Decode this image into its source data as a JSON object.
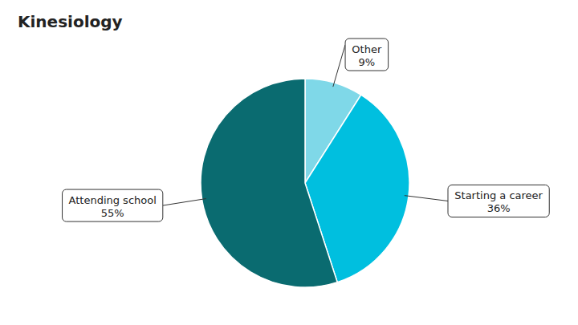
{
  "chart_data": {
    "type": "pie",
    "title": "Kinesiology",
    "categories": [
      "Other",
      "Starting a career",
      "Attending school"
    ],
    "values": [
      9,
      36,
      55
    ],
    "value_labels": [
      "9%",
      "36%",
      "55%"
    ],
    "colors": [
      "#7FD8E8",
      "#00BFDF",
      "#0A6B70"
    ],
    "data_labels": true
  }
}
